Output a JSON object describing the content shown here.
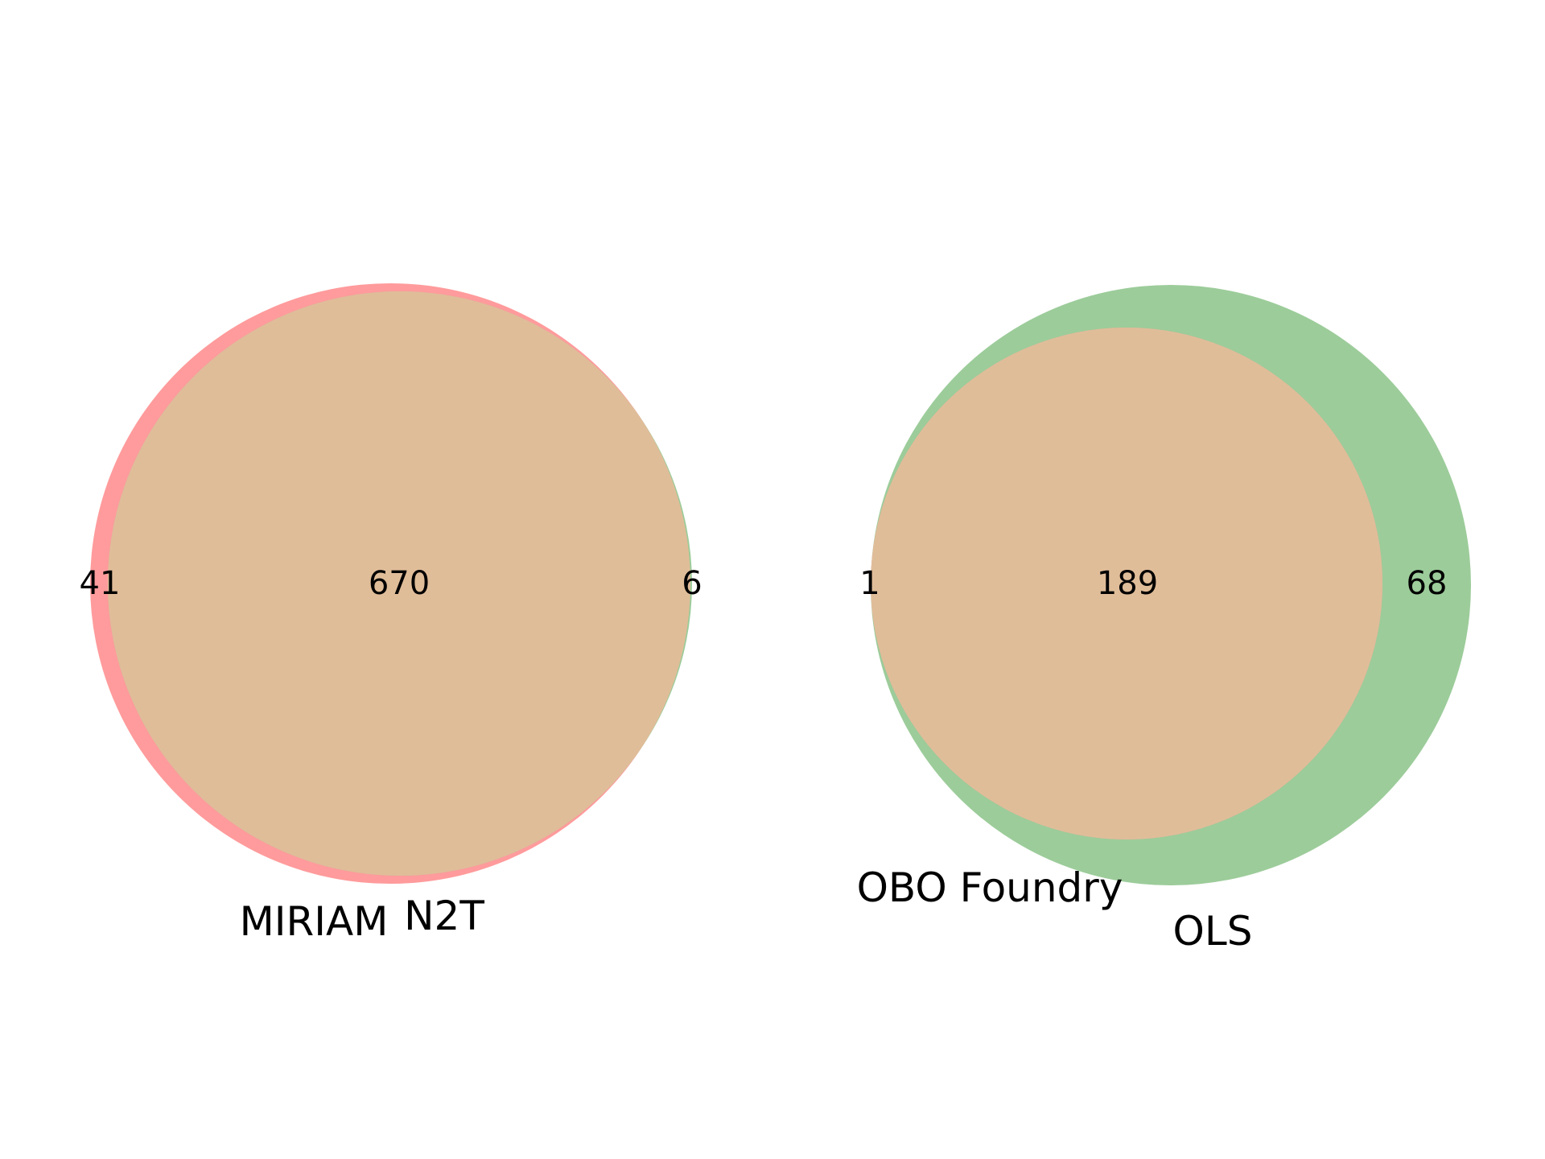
{
  "colors": {
    "set_a": "#ff9b9c",
    "set_b": "#9ccc9a",
    "overlap": "#e0bd99"
  },
  "diagrams": [
    {
      "set_a": {
        "name": "MIRIAM",
        "only_count": "41"
      },
      "set_b": {
        "name": "N2T",
        "only_count": "6"
      },
      "overlap_count": "670"
    },
    {
      "set_a": {
        "name": "OBO Foundry",
        "only_count": "1"
      },
      "set_b": {
        "name": "OLS",
        "only_count": "68"
      },
      "overlap_count": "189"
    }
  ]
}
